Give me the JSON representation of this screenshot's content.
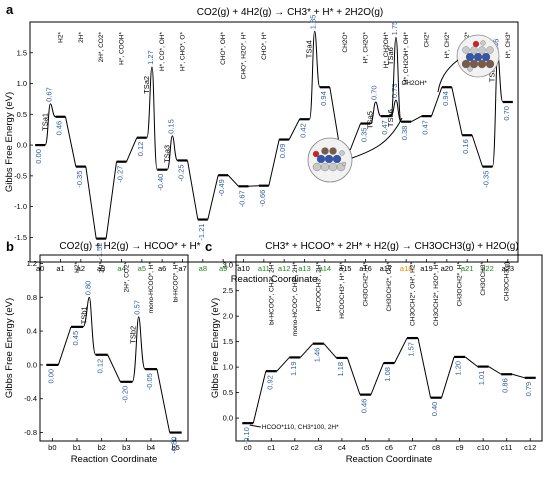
{
  "chart_data": [
    {
      "panel": "a",
      "type": "line",
      "title": "CO2(g) + 4H2(g) → CH3* + H* + 2H2O(g)",
      "xlabel": "Reaction Coordinate",
      "ylabel": "Gibbs Free Energy (eV)",
      "ylim": [
        -1.9,
        2.0
      ],
      "yticks": [
        -1.5,
        -1.0,
        -0.5,
        0.0,
        0.5,
        1.0,
        1.5
      ],
      "ytick_labels": [
        "-1.5",
        "-1.0",
        "-0.5",
        "0.0",
        "0.5",
        "1.0",
        "1.5"
      ],
      "x": [
        "a0",
        "a1",
        "a2",
        "a3",
        "a4",
        "a5",
        "a6",
        "a7",
        "a8",
        "a9",
        "a10",
        "a11",
        "a12",
        "a13",
        "a14",
        "a15",
        "a16",
        "a17",
        "a18",
        "a19",
        "a20",
        "a21",
        "a22",
        "a23"
      ],
      "x_colors": [
        "#000",
        "#000",
        "#000",
        "#000",
        "#1a8a1a",
        "#1a8a1a",
        "#000",
        "#000",
        "#1a8a1a",
        "#1a8a1a",
        "#000",
        "#1a8a1a",
        "#1a8a1a",
        "#1a8a1a",
        "#1a8a1a",
        "#000",
        "#000",
        "#000",
        "#e08a00",
        "#000",
        "#000",
        "#1a8a1a",
        "#1a8a1a",
        "#000"
      ],
      "values": [
        0.0,
        0.46,
        -0.35,
        -1.52,
        -0.27,
        0.12,
        -0.4,
        -0.25,
        -1.21,
        -0.49,
        -0.67,
        -0.66,
        0.09,
        0.42,
        0.94,
        -0.08,
        0.35,
        0.47,
        0.38,
        0.47,
        0.94,
        0.16,
        -0.35,
        0.7
      ],
      "value_labels": [
        "0.00",
        "0.46",
        "-0.35",
        "-1.52",
        "-0.27",
        "0.12",
        "-0.40",
        "-0.25",
        "-1.21",
        "-0.49",
        "-0.67",
        "-0.66",
        "0.09",
        "0.42",
        "0.94",
        "-0.08",
        "0.35",
        "0.47",
        "0.38",
        "0.47",
        "0.94",
        "0.16",
        "-0.35",
        "0.70"
      ],
      "transition_states": [
        {
          "name": "TSa1",
          "between": [
            0,
            1
          ],
          "value": 0.67,
          "label": "0.67"
        },
        {
          "name": "TSa2",
          "between": [
            5,
            6
          ],
          "value": 1.27,
          "label": "1.27"
        },
        {
          "name": "TSa3",
          "between": [
            6,
            7
          ],
          "value": 0.15,
          "label": "0.15"
        },
        {
          "name": "TSa4",
          "between": [
            13,
            14
          ],
          "value": 1.85,
          "label": "1.85"
        },
        {
          "name": "TSa5",
          "between": [
            16,
            17
          ],
          "value": 0.7,
          "label": "0.70"
        },
        {
          "name": "TSa6",
          "between": [
            17,
            18
          ],
          "value": 0.73,
          "label": "0.73"
        },
        {
          "name": "TSa6'",
          "between": [
            17,
            18
          ],
          "value": 1.75,
          "label": "1.75",
          "color": "#e08a00"
        },
        {
          "name": "TSa7",
          "between": [
            22,
            23
          ],
          "value": 1.46,
          "label": "1.46"
        }
      ],
      "species": [
        "",
        "H2*",
        "2H*",
        "2H*, CO2*",
        "H*, COOH*",
        "",
        "H*, CO*, OH*",
        "H*, CHO*, O*",
        "",
        "CHO*, OH*",
        "CHO*, H2O*, H*",
        "CHO*, H*",
        "",
        "",
        "",
        "CH2O*",
        "H*, CH2O*",
        "H*, CH2OH*",
        "H*, CH2OH*, OH*",
        "CH2*",
        "H*, CH2*",
        "2H*, CH2*",
        "",
        "H*, CH3*"
      ],
      "annotations": [
        "CH2OH*"
      ]
    },
    {
      "panel": "b",
      "type": "line",
      "title": "CO2(g) + H2(g) → HCOO* + H*",
      "xlabel": "Reaction Coordinate",
      "ylabel": "Gibbs Free Energy (eV)",
      "ylim": [
        -0.9,
        1.3
      ],
      "yticks": [
        -0.8,
        -0.4,
        0.0,
        0.4,
        0.8,
        1.2
      ],
      "ytick_labels": [
        "-0.8",
        "-0.4",
        "0.0",
        "0.4",
        "0.8",
        "1.2"
      ],
      "x": [
        "b0",
        "b1",
        "b2",
        "b3",
        "b4",
        "b5"
      ],
      "values": [
        0.0,
        0.45,
        0.12,
        -0.2,
        -0.05,
        -0.8
      ],
      "value_labels": [
        "0.00",
        "0.45",
        "0.12",
        "-0.20",
        "-0.05",
        "-0.80"
      ],
      "transition_states": [
        {
          "name": "TSb1",
          "between": [
            1,
            2
          ],
          "value": 0.8,
          "label": "0.80"
        },
        {
          "name": "TSb2",
          "between": [
            3,
            4
          ],
          "value": 0.57,
          "label": "0.57"
        }
      ],
      "species": [
        "",
        "H2*",
        "2H*",
        "2H*, CO2*",
        "mono-HCOO*, H*",
        "bi-HCOO*, H*"
      ]
    },
    {
      "panel": "c",
      "type": "line",
      "title": "CH3* + HCOO* + 2H* + H2(g) → CH3OCH3(g) + H2O(g)",
      "xlabel": "Reaction Coordinate",
      "ylabel": "Gibbs Free Energy (eV)",
      "ylim": [
        -0.45,
        3.2
      ],
      "yticks": [
        0.0,
        0.5,
        1.0,
        1.5,
        2.0,
        2.5,
        3.0
      ],
      "ytick_labels": [
        "0.0",
        "0.5",
        "1.0",
        "1.5",
        "2.0",
        "2.5",
        "3.0"
      ],
      "x": [
        "c0",
        "c1",
        "c2",
        "c3",
        "c4",
        "c5",
        "c6",
        "c7",
        "c8",
        "c9",
        "c10",
        "c11",
        "c12"
      ],
      "values": [
        -0.1,
        0.92,
        1.19,
        1.46,
        1.18,
        0.46,
        1.08,
        1.57,
        0.4,
        1.2,
        1.01,
        0.86,
        0.79
      ],
      "value_labels": [
        "-0.10",
        "0.92",
        "1.19",
        "1.46",
        "1.18",
        "0.46",
        "1.08",
        "1.57",
        "0.40",
        "1.20",
        "1.01",
        "0.86",
        "0.79"
      ],
      "species": [
        "HCOO*110, CH3*100, 2H*",
        "bi-HCOO*, CH3*, 2H*",
        "mono-HCOO*, CH3*, 2H*",
        "HCOOCH3*, 2H*",
        "HCOOCH3*, H*, H*",
        "CH3OCH2*, H*",
        "CH3OCH2*, OH*",
        "CH3OCH2*, OH*, H2*",
        "CH3OCH2*, H2O*, H*",
        "CH3OCH2*, H*",
        "CH3OCH3*",
        "CH3OCH3(g)",
        ""
      ]
    }
  ],
  "colors": {
    "value_label": "#2f5fa8",
    "green_label": "#1a8a1a",
    "orange": "#e08a00",
    "ball_grey": "#c9c9c9",
    "ball_red": "#cc2222",
    "ball_blue": "#3355aa",
    "ball_brown": "#7a5a4a"
  },
  "icons": [
    "adsorbate-structure-image-1",
    "adsorbate-structure-image-2"
  ]
}
